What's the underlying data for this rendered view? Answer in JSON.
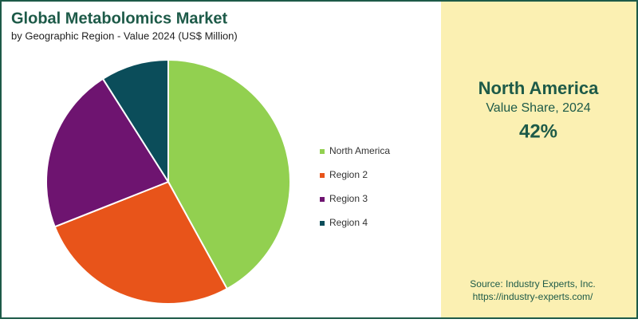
{
  "chart_data": {
    "type": "pie",
    "title": "Global Metabolomics Market",
    "subtitle": "by Geographic Region - Value 2024 (US$ Million)",
    "categories": [
      "North America",
      "Region 2",
      "Region 3",
      "Region 4"
    ],
    "values": [
      42,
      27,
      22,
      9
    ],
    "colors": [
      "#92d050",
      "#e8541a",
      "#6e1470",
      "#0b4d5a"
    ],
    "legend": "right"
  },
  "highlight": {
    "title": "North America",
    "subtitle": "Value Share, 2024",
    "value": "42%"
  },
  "source": {
    "line1": "Source: Industry Experts, Inc.",
    "line2": "https://industry-experts.com/"
  }
}
